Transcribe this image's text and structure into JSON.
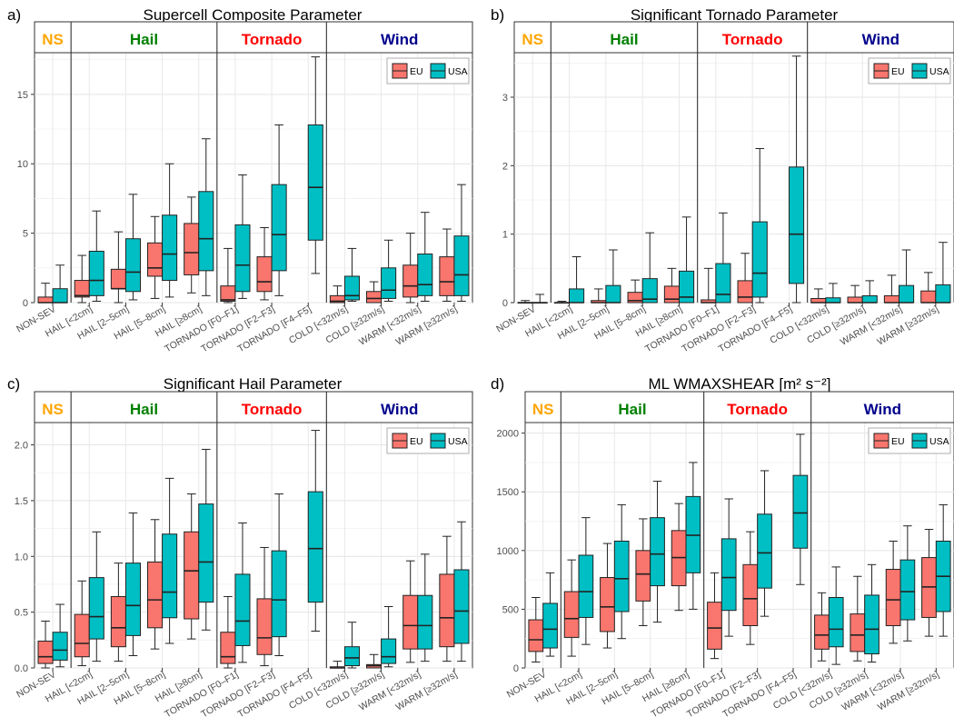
{
  "chart_data": [
    {
      "type": "box",
      "panel_label": "a)",
      "title": "Supercell Composite Parameter",
      "ylim": [
        0,
        18
      ],
      "yticks": [
        0,
        5,
        10,
        15
      ],
      "groups": [
        "NS",
        "Hail",
        "Tornado",
        "Wind"
      ],
      "group_colors": [
        "#FFA500",
        "#008000",
        "#FF0000",
        "#00008B"
      ],
      "legend": {
        "placement": "top-right",
        "entries": [
          "EU",
          "USA"
        ]
      },
      "series_colors": [
        "#F8766D",
        "#00BFC4"
      ],
      "categories": [
        "NON-SEV",
        "HAIL [<2cm]",
        "HAIL [2–5cm]",
        "HAIL [5–8cm]",
        "HAIL [≥8cm]",
        "TORNADO [F0–F1]",
        "TORNADO [F2–F3]",
        "TORNADO [F4–F5]",
        "COLD [<32m/s]",
        "COLD [≥32m/s]",
        "WARM [<32m/s]",
        "WARM [≥32m/s]"
      ],
      "series": [
        {
          "name": "EU",
          "boxes": [
            [
              0,
              0,
              0,
              0.4,
              1.4
            ],
            [
              0,
              0.4,
              0.5,
              1.6,
              3.4
            ],
            [
              0,
              1,
              1,
              2.4,
              5.1
            ],
            [
              0.3,
              1.9,
              2.5,
              4.3,
              6.2
            ],
            [
              0.7,
              2,
              3.6,
              5.7,
              7.6
            ],
            [
              0,
              0.1,
              0.2,
              1.2,
              3.9
            ],
            [
              0.2,
              0.8,
              1.5,
              3.3,
              5.4
            ],
            null,
            [
              0,
              0,
              0.1,
              0.5,
              1.2
            ],
            [
              0,
              0,
              0.3,
              0.8,
              1.5
            ],
            [
              0,
              0.4,
              1.2,
              2.7,
              5
            ],
            [
              0.1,
              0.5,
              1.5,
              3.3,
              5.3
            ]
          ]
        },
        {
          "name": "USA",
          "boxes": [
            [
              0,
              0,
              0,
              1,
              2.7
            ],
            [
              0.1,
              0.5,
              1.6,
              3.7,
              6.6
            ],
            [
              0.2,
              0.8,
              2.2,
              4.6,
              7.8
            ],
            [
              0.4,
              1.6,
              3.5,
              6.3,
              10
            ],
            [
              0.5,
              2.3,
              4.6,
              8,
              11.8
            ],
            [
              0.3,
              0.8,
              2.7,
              5.6,
              9.2
            ],
            [
              0.5,
              2.3,
              4.9,
              8.5,
              12.8
            ],
            [
              2.1,
              4.5,
              8.3,
              12.8,
              17.7
            ],
            [
              0.1,
              0.2,
              0.5,
              1.9,
              3.9
            ],
            [
              0.1,
              0.3,
              0.9,
              2.5,
              4.5
            ],
            [
              0.1,
              0.5,
              1.3,
              3.5,
              6.5
            ],
            [
              0.1,
              0.5,
              2,
              4.8,
              8.5
            ]
          ]
        }
      ]
    },
    {
      "type": "box",
      "panel_label": "b)",
      "title": "Significant Tornado Parameter",
      "ylim": [
        0,
        3.65
      ],
      "yticks": [
        0,
        1,
        2,
        3
      ],
      "groups": [
        "NS",
        "Hail",
        "Tornado",
        "Wind"
      ],
      "group_colors": [
        "#FFA500",
        "#008000",
        "#FF0000",
        "#00008B"
      ],
      "legend": {
        "placement": "top-right",
        "entries": [
          "EU",
          "USA"
        ]
      },
      "series_colors": [
        "#F8766D",
        "#00BFC4"
      ],
      "categories": [
        "NON-SEV",
        "HAIL [<2cm]",
        "HAIL [2–5cm]",
        "HAIL [5–8cm]",
        "HAIL [≥8cm]",
        "TORNADO [F0–F1]",
        "TORNADO [F2–F3]",
        "TORNADO [F4–F5]",
        "COLD [<32m/s]",
        "COLD [≥32m/s]",
        "WARM [<32m/s]",
        "WARM [≥32m/s]"
      ],
      "series": [
        {
          "name": "EU",
          "boxes": [
            [
              0,
              0,
              0,
              0,
              0.03
            ],
            [
              0,
              0,
              0,
              0,
              0.02
            ],
            [
              0,
              0,
              0,
              0.03,
              0.2
            ],
            [
              0,
              0,
              0.03,
              0.15,
              0.33
            ],
            [
              0,
              0,
              0.05,
              0.24,
              0.5
            ],
            [
              0,
              0,
              0,
              0.04,
              0.5
            ],
            [
              0,
              0,
              0.08,
              0.32,
              0.72
            ],
            null,
            [
              0,
              0,
              0,
              0.06,
              0.2
            ],
            [
              0,
              0,
              0,
              0.08,
              0.25
            ],
            [
              0,
              0,
              0,
              0.1,
              0.4
            ],
            [
              0,
              0,
              0,
              0.17,
              0.44
            ]
          ]
        },
        {
          "name": "USA",
          "boxes": [
            [
              0,
              0,
              0,
              0,
              0.12
            ],
            [
              0,
              0,
              0,
              0.2,
              0.67
            ],
            [
              0,
              0,
              0,
              0.25,
              0.77
            ],
            [
              0,
              0,
              0.05,
              0.35,
              1.02
            ],
            [
              0,
              0,
              0.08,
              0.46,
              1.25
            ],
            [
              0,
              0,
              0.12,
              0.57,
              1.31
            ],
            [
              0,
              0.08,
              0.43,
              1.18,
              2.25
            ],
            [
              0,
              0.28,
              1,
              1.98,
              3.6
            ],
            [
              0,
              0,
              0,
              0.07,
              0.28
            ],
            [
              0,
              0,
              0,
              0.1,
              0.32
            ],
            [
              0,
              0,
              0,
              0.25,
              0.77
            ],
            [
              0,
              0,
              0,
              0.26,
              0.88
            ]
          ]
        }
      ]
    },
    {
      "type": "box",
      "panel_label": "c)",
      "title": "Significant Hail Parameter",
      "ylim": [
        0,
        2.2
      ],
      "yticks": [
        0,
        0.5,
        1,
        1.5,
        2
      ],
      "ytick_labels": [
        "0.0",
        "0.5",
        "1.0",
        "1.5",
        "2.0"
      ],
      "groups": [
        "NS",
        "Hail",
        "Tornado",
        "Wind"
      ],
      "group_colors": [
        "#FFA500",
        "#008000",
        "#FF0000",
        "#00008B"
      ],
      "legend": {
        "placement": "top-right",
        "entries": [
          "EU",
          "USA"
        ]
      },
      "series_colors": [
        "#F8766D",
        "#00BFC4"
      ],
      "categories": [
        "NON-SEV",
        "HAIL [<2cm]",
        "HAIL [2–5cm]",
        "HAIL [5–8cm]",
        "HAIL [≥8cm]",
        "TORNADO [F0–F1]",
        "TORNADO [F2–F3]",
        "TORNADO [F4–F5]",
        "COLD [<32m/s]",
        "COLD [≥32m/s]",
        "WARM [<32m/s]",
        "WARM [≥32m/s]"
      ],
      "series": [
        {
          "name": "EU",
          "boxes": [
            [
              0,
              0.04,
              0.1,
              0.24,
              0.42
            ],
            [
              0.02,
              0.1,
              0.22,
              0.48,
              0.78
            ],
            [
              0.06,
              0.19,
              0.36,
              0.64,
              0.94
            ],
            [
              0.17,
              0.36,
              0.61,
              0.95,
              1.33
            ],
            [
              0.26,
              0.44,
              0.87,
              1.22,
              1.56
            ],
            [
              0,
              0.04,
              0.1,
              0.32,
              0.64
            ],
            [
              0.02,
              0.12,
              0.27,
              0.62,
              1.08
            ],
            null,
            [
              0,
              0,
              0,
              0.01,
              0.06
            ],
            [
              0,
              0,
              0.02,
              0.03,
              0.12
            ],
            [
              0.05,
              0.17,
              0.38,
              0.65,
              0.96
            ],
            [
              0.06,
              0.19,
              0.45,
              0.84,
              1.18
            ]
          ]
        },
        {
          "name": "USA",
          "boxes": [
            [
              0.01,
              0.07,
              0.16,
              0.32,
              0.57
            ],
            [
              0.06,
              0.26,
              0.46,
              0.81,
              1.22
            ],
            [
              0.11,
              0.29,
              0.56,
              0.94,
              1.39
            ],
            [
              0.22,
              0.45,
              0.68,
              1.2,
              1.7
            ],
            [
              0.34,
              0.59,
              0.95,
              1.47,
              1.96
            ],
            [
              0.05,
              0.2,
              0.42,
              0.84,
              1.3
            ],
            [
              0.11,
              0.28,
              0.61,
              1.05,
              1.56
            ],
            [
              0.33,
              0.59,
              1.07,
              1.58,
              2.13
            ],
            [
              0,
              0.02,
              0.09,
              0.19,
              0.41
            ],
            [
              0.01,
              0.04,
              0.1,
              0.26,
              0.55
            ],
            [
              0.06,
              0.17,
              0.38,
              0.65,
              1.02
            ],
            [
              0.06,
              0.22,
              0.51,
              0.88,
              1.31
            ]
          ]
        }
      ]
    },
    {
      "type": "box",
      "panel_label": "d)",
      "title": "ML WMAXSHEAR [m² s⁻²]",
      "ylim": [
        0,
        2090
      ],
      "yticks": [
        0,
        500,
        1000,
        1500,
        2000
      ],
      "groups": [
        "NS",
        "Hail",
        "Tornado",
        "Wind"
      ],
      "group_colors": [
        "#FFA500",
        "#008000",
        "#FF0000",
        "#00008B"
      ],
      "legend": {
        "placement": "top-right",
        "entries": [
          "EU",
          "USA"
        ]
      },
      "series_colors": [
        "#F8766D",
        "#00BFC4"
      ],
      "categories": [
        "NON-SEV",
        "HAIL [<2cm]",
        "HAIL [2–5cm]",
        "HAIL [5–8cm]",
        "HAIL [≥8cm]",
        "TORNADO [F0–F1]",
        "TORNADO [F2–F3]",
        "TORNADO [F4–F5]",
        "COLD [<32m/s]",
        "COLD [≥32m/s]",
        "WARM [<32m/s]",
        "WARM [≥32m/s]"
      ],
      "series": [
        {
          "name": "EU",
          "boxes": [
            [
              50,
              140,
              240,
              410,
              600
            ],
            [
              100,
              260,
              420,
              650,
              920
            ],
            [
              170,
              310,
              520,
              770,
              1060
            ],
            [
              360,
              570,
              800,
              1000,
              1270
            ],
            [
              490,
              700,
              940,
              1170,
              1400
            ],
            [
              80,
              160,
              340,
              560,
              810
            ],
            [
              200,
              360,
              590,
              880,
              1160
            ],
            null,
            [
              60,
              160,
              280,
              450,
              640
            ],
            [
              60,
              140,
              280,
              460,
              780
            ],
            [
              210,
              360,
              580,
              840,
              1080
            ],
            [
              270,
              430,
              690,
              940,
              1180
            ]
          ]
        },
        {
          "name": "USA",
          "boxes": [
            [
              100,
              170,
              330,
              550,
              810
            ],
            [
              200,
              430,
              650,
              960,
              1280
            ],
            [
              250,
              480,
              760,
              1080,
              1390
            ],
            [
              390,
              700,
              970,
              1280,
              1590
            ],
            [
              500,
              810,
              1130,
              1460,
              1750
            ],
            [
              270,
              490,
              770,
              1100,
              1440
            ],
            [
              440,
              680,
              980,
              1310,
              1680
            ],
            [
              710,
              1020,
              1320,
              1640,
              1990
            ],
            [
              30,
              180,
              330,
              600,
              860
            ],
            [
              50,
              120,
              330,
              620,
              880
            ],
            [
              230,
              410,
              650,
              920,
              1210
            ],
            [
              270,
              480,
              780,
              1080,
              1390
            ]
          ]
        }
      ]
    }
  ]
}
